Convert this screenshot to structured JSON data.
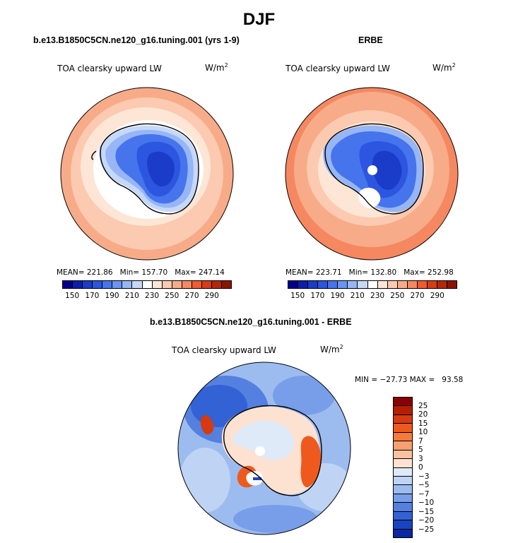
{
  "chart_data": [
    {
      "type": "heatmap",
      "title": "DJF",
      "panel_title": "b.e13.B1850C5CN.ne120_g16.tuning.001 (yrs 1-9)",
      "variable": "TOA clearsky upward LW",
      "units": "W/m",
      "units_sup": "2",
      "stats": {
        "mean_label": "MEAN=",
        "mean": "221.86",
        "min_label": "Min=",
        "min": "157.70",
        "max_label": "Max=",
        "max": "247.14"
      },
      "colorbar_ticks": [
        "150",
        "170",
        "190",
        "210",
        "230",
        "250",
        "270",
        "290"
      ],
      "colorbar_colors": [
        "#00008b",
        "#0d1fa8",
        "#1a3cc8",
        "#2c55e0",
        "#4574ec",
        "#6b94f2",
        "#97b6f6",
        "#c6d8fa",
        "#ffffff",
        "#fde6d6",
        "#fbcab0",
        "#f8ab88",
        "#f58860",
        "#ef5a2e",
        "#d63d14",
        "#b42808",
        "#8b1400"
      ]
    },
    {
      "type": "heatmap",
      "panel_title": "ERBE",
      "variable": "TOA clearsky upward LW",
      "units": "W/m",
      "units_sup": "2",
      "stats": {
        "mean_label": "MEAN=",
        "mean": "223.71",
        "min_label": "Min=",
        "min": "132.80",
        "max_label": "Max=",
        "max": "252.98"
      },
      "colorbar_ticks": [
        "150",
        "170",
        "190",
        "210",
        "230",
        "250",
        "270",
        "290"
      ]
    },
    {
      "type": "heatmap",
      "panel_title": "b.e13.B1850C5CN.ne120_g16.tuning.001 - ERBE",
      "variable": "TOA clearsky upward LW",
      "units": "W/m",
      "units_sup": "2",
      "minmax": "MIN = −27.73 MAX =   93.58",
      "colorbar_ticks": [
        "25",
        "20",
        "15",
        "10",
        "7",
        "5",
        "3",
        "0",
        "−3",
        "−5",
        "−7",
        "−10",
        "−15",
        "−20",
        "−25"
      ],
      "colorbar_colors": [
        "#8b0000",
        "#b51e00",
        "#d63a10",
        "#ee5a1e",
        "#f57a3c",
        "#f9a070",
        "#fbc2a2",
        "#fde2d2",
        "#dfeaf8",
        "#bfd4f5",
        "#9cbcf0",
        "#789ee9",
        "#5480e0",
        "#3262d4",
        "#1a44c0",
        "#0a28a0"
      ]
    }
  ]
}
